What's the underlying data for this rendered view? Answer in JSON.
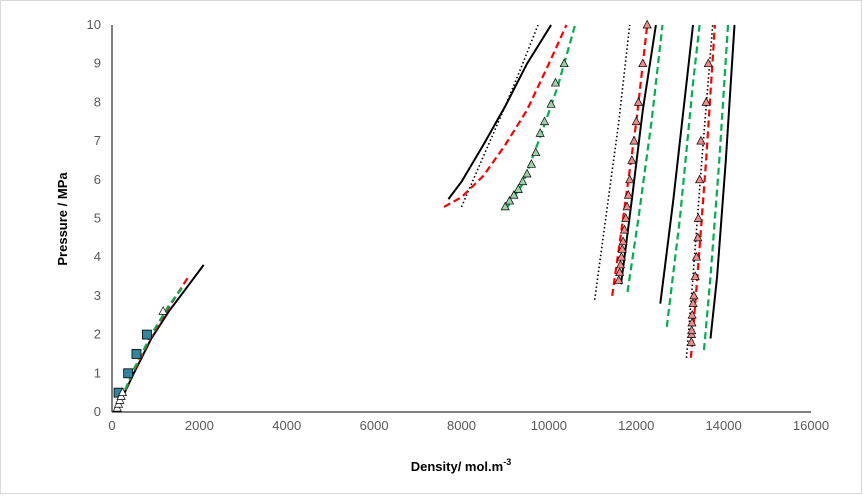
{
  "chart_data": {
    "type": "scatter",
    "title": "",
    "xlabel": "Density/ mol.m",
    "xlabel_superscript": "-3",
    "ylabel": "Pressure / MPa",
    "xlim": [
      0,
      16000
    ],
    "ylim": [
      0,
      10
    ],
    "x_ticks": [
      0,
      2000,
      4000,
      6000,
      8000,
      10000,
      12000,
      14000,
      16000
    ],
    "y_ticks": [
      0,
      1,
      2,
      3,
      4,
      5,
      6,
      7,
      8,
      9,
      10
    ],
    "x_tick_labels": [
      "0",
      "2000",
      "4000",
      "6000",
      "8000",
      "10000",
      "12000",
      "14000",
      "16000"
    ],
    "y_tick_labels": [
      "0",
      "1",
      "2",
      "3",
      "4",
      "5",
      "6",
      "7",
      "8",
      "9",
      "10"
    ],
    "grid": false,
    "legend": "none",
    "colors": {
      "black": "#000000",
      "red": "#ff0000",
      "green": "#00b050",
      "marker_teal": "#31859c",
      "tri_green": "#9bd3a5",
      "tri_red": "#f28a8a",
      "tri_white": "#ffffff"
    },
    "series": [
      {
        "style": "solid",
        "color": "black",
        "points": [
          [
            100,
            0.05
          ],
          [
            500,
            1.0
          ],
          [
            900,
            1.9
          ],
          [
            1300,
            2.6
          ],
          [
            1700,
            3.2
          ],
          [
            2100,
            3.8
          ]
        ]
      },
      {
        "style": "dashed",
        "color": "red",
        "points": [
          [
            100,
            0.05
          ],
          [
            500,
            1.05
          ],
          [
            900,
            1.95
          ],
          [
            1300,
            2.7
          ],
          [
            1750,
            3.5
          ]
        ]
      },
      {
        "style": "dashed",
        "color": "green",
        "points": [
          [
            100,
            0.05
          ],
          [
            500,
            1.1
          ],
          [
            900,
            2.0
          ],
          [
            1300,
            2.75
          ],
          [
            1600,
            3.2
          ]
        ]
      },
      {
        "style": "solid",
        "color": "black",
        "points": [
          [
            7700,
            5.5
          ],
          [
            8000,
            5.95
          ],
          [
            8500,
            6.9
          ],
          [
            9000,
            7.9
          ],
          [
            9500,
            9.0
          ],
          [
            10050,
            10.0
          ]
        ]
      },
      {
        "style": "dotted",
        "color": "black",
        "points": [
          [
            8000,
            5.3
          ],
          [
            8500,
            6.6
          ],
          [
            9000,
            7.9
          ],
          [
            9400,
            9.0
          ],
          [
            9750,
            10.0
          ]
        ]
      },
      {
        "style": "dashed",
        "color": "red",
        "points": [
          [
            7600,
            5.3
          ],
          [
            8000,
            5.55
          ],
          [
            8500,
            6.1
          ],
          [
            9000,
            6.9
          ],
          [
            9500,
            7.8
          ],
          [
            10000,
            9.0
          ],
          [
            10400,
            10.0
          ]
        ]
      },
      {
        "style": "dashed",
        "color": "green",
        "points": [
          [
            9050,
            5.3
          ],
          [
            9400,
            5.9
          ],
          [
            9800,
            7.1
          ],
          [
            10200,
            8.4
          ],
          [
            10600,
            10.0
          ]
        ]
      },
      {
        "style": "dotted",
        "color": "black",
        "points": [
          [
            11050,
            2.9
          ],
          [
            11300,
            5.0
          ],
          [
            11600,
            7.5
          ],
          [
            11850,
            10.0
          ]
        ]
      },
      {
        "style": "dashed",
        "color": "red",
        "points": [
          [
            11450,
            3.0
          ],
          [
            11700,
            5.0
          ],
          [
            12000,
            7.5
          ],
          [
            12250,
            10.0
          ]
        ]
      },
      {
        "style": "solid",
        "color": "black",
        "points": [
          [
            11650,
            3.3
          ],
          [
            11900,
            5.5
          ],
          [
            12150,
            7.8
          ],
          [
            12450,
            10.0
          ]
        ]
      },
      {
        "style": "dashed",
        "color": "green",
        "points": [
          [
            11800,
            3.1
          ],
          [
            12050,
            5.0
          ],
          [
            12350,
            7.5
          ],
          [
            12600,
            10.0
          ]
        ]
      },
      {
        "style": "solid",
        "color": "black",
        "points": [
          [
            12550,
            2.8
          ],
          [
            12850,
            5.5
          ],
          [
            13200,
            9.0
          ],
          [
            13300,
            10.0
          ]
        ]
      },
      {
        "style": "dashed",
        "color": "green",
        "points": [
          [
            12700,
            2.2
          ],
          [
            13000,
            5.0
          ],
          [
            13300,
            8.5
          ],
          [
            13450,
            10.0
          ]
        ]
      },
      {
        "style": "dotted",
        "color": "black",
        "points": [
          [
            13150,
            1.4
          ],
          [
            13300,
            3.5
          ],
          [
            13500,
            6.5
          ],
          [
            13750,
            10.0
          ]
        ]
      },
      {
        "style": "dashed",
        "color": "red",
        "points": [
          [
            13250,
            1.4
          ],
          [
            13400,
            3.5
          ],
          [
            13600,
            6.5
          ],
          [
            13800,
            10.0
          ]
        ]
      },
      {
        "style": "dashed",
        "color": "green",
        "points": [
          [
            13550,
            1.6
          ],
          [
            13700,
            3.5
          ],
          [
            13900,
            6.5
          ],
          [
            14100,
            10.0
          ]
        ]
      },
      {
        "style": "solid",
        "color": "black",
        "points": [
          [
            13700,
            1.9
          ],
          [
            13850,
            3.5
          ],
          [
            14050,
            6.5
          ],
          [
            14250,
            10.0
          ]
        ]
      }
    ],
    "markers": [
      {
        "shape": "square",
        "fill": "marker_teal",
        "points": [
          [
            150,
            0.5
          ],
          [
            370,
            1.0
          ],
          [
            560,
            1.5
          ],
          [
            800,
            2.0
          ]
        ]
      },
      {
        "shape": "triangle",
        "fill": "tri_white",
        "points": [
          [
            120,
            0.1
          ],
          [
            150,
            0.2
          ],
          [
            180,
            0.3
          ],
          [
            210,
            0.4
          ],
          [
            240,
            0.5
          ],
          [
            1170,
            2.6
          ]
        ]
      },
      {
        "shape": "triangle",
        "fill": "tri_green",
        "points": [
          [
            9000,
            5.3
          ],
          [
            9100,
            5.45
          ],
          [
            9200,
            5.6
          ],
          [
            9300,
            5.75
          ],
          [
            9400,
            5.95
          ],
          [
            9500,
            6.15
          ],
          [
            9600,
            6.4
          ],
          [
            9700,
            6.7
          ],
          [
            9800,
            7.2
          ],
          [
            9900,
            7.5
          ],
          [
            10050,
            7.95
          ],
          [
            10150,
            8.5
          ],
          [
            10350,
            9.0
          ]
        ]
      },
      {
        "shape": "triangle",
        "fill": "tri_red",
        "points": [
          [
            11600,
            3.4
          ],
          [
            11620,
            3.6
          ],
          [
            11640,
            3.8
          ],
          [
            11660,
            4.0
          ],
          [
            11680,
            4.2
          ],
          [
            11700,
            4.4
          ],
          [
            11730,
            4.7
          ],
          [
            11760,
            5.0
          ],
          [
            11790,
            5.3
          ],
          [
            11820,
            5.6
          ],
          [
            11850,
            6.0
          ],
          [
            11900,
            6.5
          ],
          [
            11950,
            7.0
          ],
          [
            12000,
            7.5
          ],
          [
            12050,
            8.0
          ],
          [
            12150,
            9.0
          ],
          [
            12250,
            10.0
          ]
        ]
      },
      {
        "shape": "triangle",
        "fill": "tri_red",
        "points": [
          [
            13260,
            1.8
          ],
          [
            13265,
            2.0
          ],
          [
            13270,
            2.1
          ],
          [
            13275,
            2.3
          ],
          [
            13280,
            2.5
          ],
          [
            13300,
            2.8
          ],
          [
            13320,
            3.0
          ],
          [
            13350,
            3.5
          ],
          [
            13380,
            4.0
          ],
          [
            13410,
            4.5
          ],
          [
            13420,
            5.0
          ],
          [
            13450,
            6.0
          ],
          [
            13480,
            7.0
          ],
          [
            13600,
            8.0
          ],
          [
            13650,
            9.0
          ]
        ]
      }
    ]
  }
}
